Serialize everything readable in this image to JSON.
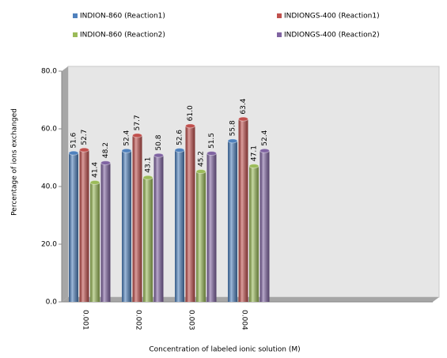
{
  "chart_data": {
    "type": "bar",
    "y_label": "Percentage of  ions exchanged",
    "x_label": "Concentration of labeled ionic solution (M)",
    "categories": [
      "0.001",
      "0.002",
      "0.003",
      "0.004",
      null,
      null,
      null
    ],
    "series": [
      {
        "name": "INDION-860 (Reaction1)",
        "color": "#4f81bd",
        "values": [
          51.6,
          52.4,
          52.6,
          55.8,
          null,
          null,
          null
        ]
      },
      {
        "name": "INDIONGS-400 (Reaction1)",
        "color": "#c0504d",
        "values": [
          52.7,
          57.7,
          61.0,
          63.4,
          null,
          null,
          null
        ],
        "value_labels": [
          "52.7",
          "57.7",
          "61.0",
          "63.4",
          null,
          null,
          null
        ]
      },
      {
        "name": "INDION-860 (Reaction2)",
        "color": "#9bbb59",
        "values": [
          41.4,
          43.1,
          45.2,
          47.1,
          null,
          null,
          null
        ]
      },
      {
        "name": "INDIONGS-400 (Reaction2)",
        "color": "#8064a2",
        "values": [
          48.2,
          50.8,
          51.5,
          52.4,
          null,
          null,
          null
        ]
      }
    ],
    "ylim": [
      0,
      80
    ],
    "yticks": [
      {
        "value": 0,
        "label": "0.0"
      },
      {
        "value": 20,
        "label": "20.0"
      },
      {
        "value": 40,
        "label": "40.0"
      },
      {
        "value": 60,
        "label": "60.0"
      },
      {
        "value": 80,
        "label": "80.0"
      }
    ],
    "legend": "top"
  }
}
